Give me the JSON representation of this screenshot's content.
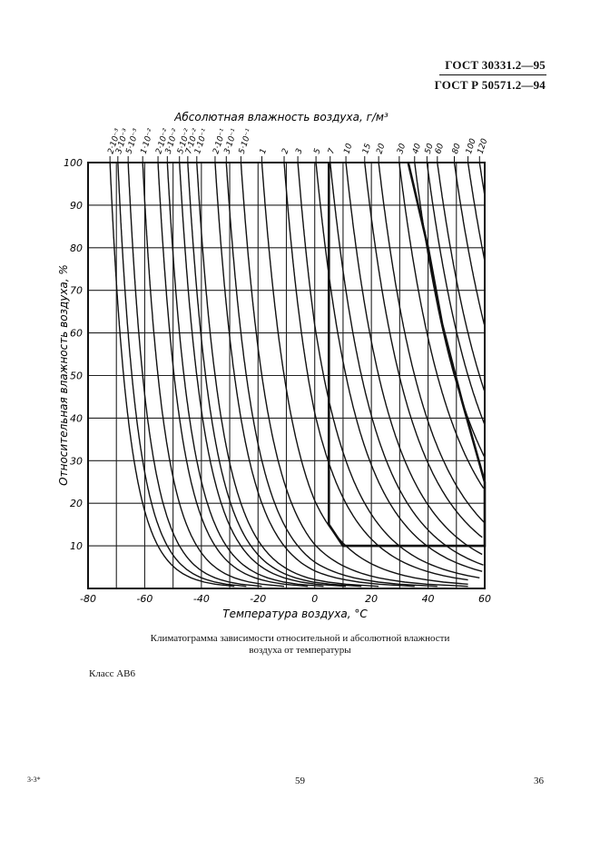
{
  "header": {
    "standard_1": "ГОСТ 30331.2—95",
    "standard_2": "ГОСТ Р 50571.2—94"
  },
  "chart_data": {
    "type": "line",
    "title": "Абсолютная влажность воздуха, г/м³",
    "xlabel": "Температура воздуха, °C",
    "ylabel": "Относительная влажность воздуха, %",
    "xlim": [
      -80,
      60
    ],
    "ylim": [
      0,
      100
    ],
    "grid": true,
    "x_ticks": [
      "-80",
      "-60",
      "-40",
      "-20",
      "0",
      "20",
      "40",
      "60"
    ],
    "y_ticks": [
      "10",
      "20",
      "30",
      "40",
      "50",
      "60",
      "70",
      "80",
      "90",
      "100"
    ],
    "top_labels": [
      "2·10⁻³",
      "3·10⁻³",
      "5·10⁻³",
      "1·10⁻²",
      "2·10⁻²",
      "3·10⁻²",
      "5·10⁻²",
      "7·10⁻²",
      "1·10⁻¹",
      "2·10⁻¹",
      "3·10⁻¹",
      "5·10⁻¹",
      "1",
      "2",
      "3",
      "5",
      "7",
      "10",
      "15",
      "20",
      "30",
      "40",
      "50",
      "60",
      "80",
      "100",
      "120"
    ],
    "abs_humidity_values": [
      0.002,
      0.003,
      0.005,
      0.01,
      0.02,
      0.03,
      0.05,
      0.07,
      0.1,
      0.2,
      0.3,
      0.5,
      1,
      2,
      3,
      5,
      7,
      10,
      15,
      20,
      30,
      40,
      50,
      60,
      80,
      100,
      120
    ],
    "class_boundary": {
      "x": [
        5,
        5,
        10,
        60,
        60,
        52,
        45,
        40,
        33
      ],
      "y": [
        100,
        15,
        10,
        10,
        25,
        44,
        62,
        80,
        100
      ]
    }
  },
  "caption": {
    "line1": "Климатограмма зависимости относительной и абсолютной влажности",
    "line2": "воздуха от температуры"
  },
  "class_label": "Класс АВ6",
  "footer": {
    "left": "3-3*",
    "center": "59",
    "right": "36"
  }
}
